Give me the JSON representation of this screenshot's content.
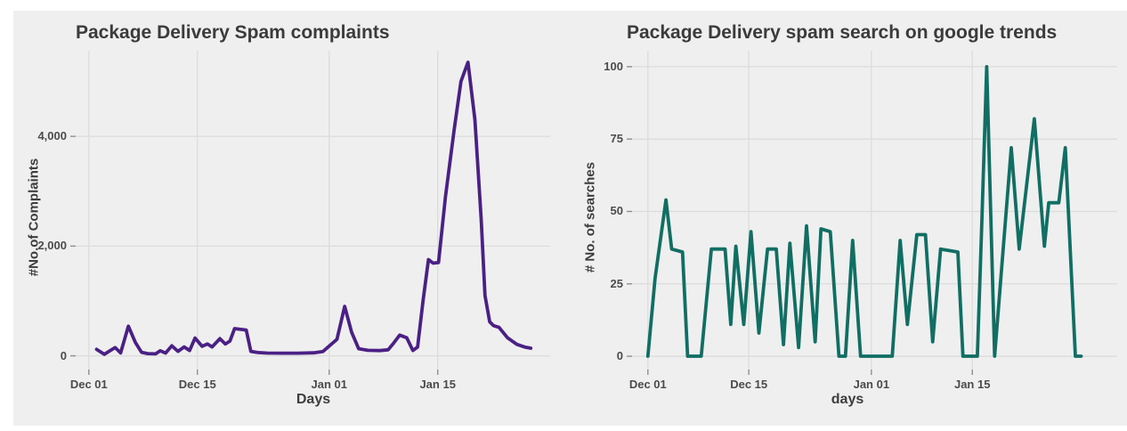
{
  "styles": {
    "figure_background": "#efefef",
    "grid_color": "#dcdcdc",
    "tick_mark_color": "#8f8f8f",
    "title_color": "#3b3b3b",
    "tick_label_color": "#4b4b4b"
  },
  "chart_data": [
    {
      "type": "line",
      "title": "Package Delivery Spam complaints",
      "xlabel": "Days",
      "ylabel": "#No.of Complaints",
      "line_color": "#4b2085",
      "x_unit": "days since Dec 01",
      "xlim": [
        -1.7,
        59.5
      ],
      "ylim": [
        -250,
        5560
      ],
      "grid": true,
      "legend": "none",
      "xticks": [
        {
          "day": 0,
          "label": "Dec 01"
        },
        {
          "day": 14,
          "label": "Dec 15"
        },
        {
          "day": 31,
          "label": "Jan 01"
        },
        {
          "day": 45,
          "label": "Jan 15"
        }
      ],
      "yticks": [
        {
          "value": 0,
          "label": "0"
        },
        {
          "value": 2000,
          "label": "2,000"
        },
        {
          "value": 4000,
          "label": "4,000"
        }
      ],
      "points": [
        [
          1,
          119
        ],
        [
          2,
          27
        ],
        [
          2.9,
          108
        ],
        [
          3.4,
          151
        ],
        [
          4.1,
          54
        ],
        [
          5.1,
          540
        ],
        [
          6,
          243
        ],
        [
          6.8,
          65
        ],
        [
          7.6,
          40
        ],
        [
          8.6,
          35
        ],
        [
          9.2,
          92
        ],
        [
          9.9,
          50
        ],
        [
          10.7,
          184
        ],
        [
          11.5,
          81
        ],
        [
          12.3,
          162
        ],
        [
          13,
          97
        ],
        [
          13.7,
          324
        ],
        [
          14.6,
          173
        ],
        [
          15.3,
          216
        ],
        [
          15.9,
          162
        ],
        [
          16.9,
          313
        ],
        [
          17.6,
          216
        ],
        [
          18.2,
          270
        ],
        [
          18.8,
          497
        ],
        [
          20.3,
          470
        ],
        [
          20.9,
          81
        ],
        [
          21.8,
          60
        ],
        [
          23,
          50
        ],
        [
          25,
          48
        ],
        [
          27,
          48
        ],
        [
          29,
          55
        ],
        [
          30.2,
          80
        ],
        [
          32,
          300
        ],
        [
          33,
          900
        ],
        [
          33.9,
          430
        ],
        [
          34.8,
          130
        ],
        [
          36,
          100
        ],
        [
          37.5,
          95
        ],
        [
          38.6,
          110
        ],
        [
          39.3,
          230
        ],
        [
          40.1,
          378
        ],
        [
          41,
          330
        ],
        [
          41.8,
          97
        ],
        [
          42.4,
          160
        ],
        [
          43.1,
          1000
        ],
        [
          43.8,
          1755
        ],
        [
          44.4,
          1690
        ],
        [
          45.1,
          1700
        ],
        [
          46,
          2900
        ],
        [
          47.1,
          4100
        ],
        [
          48,
          5000
        ],
        [
          48.9,
          5350
        ],
        [
          49.8,
          4300
        ],
        [
          50.6,
          2500
        ],
        [
          51.1,
          1100
        ],
        [
          51.7,
          620
        ],
        [
          52.2,
          550
        ],
        [
          52.9,
          520
        ],
        [
          54,
          330
        ],
        [
          55.2,
          210
        ],
        [
          56.3,
          158
        ],
        [
          57,
          140
        ]
      ]
    },
    {
      "type": "line",
      "title": "Package Delivery spam search on google trends",
      "xlabel": "days",
      "ylabel": "# No. of searches",
      "line_color": "#116e63",
      "x_unit": "days since Dec 01",
      "xlim": [
        -2.2,
        65.1
      ],
      "ylim": [
        -4.6,
        105.5
      ],
      "grid": true,
      "legend": "none",
      "xticks": [
        {
          "day": 0,
          "label": "Dec 01"
        },
        {
          "day": 14,
          "label": "Dec 15"
        },
        {
          "day": 31,
          "label": "Jan 01"
        },
        {
          "day": 45,
          "label": "Jan 15"
        }
      ],
      "yticks": [
        {
          "value": 0,
          "label": "0"
        },
        {
          "value": 25,
          "label": "25"
        },
        {
          "value": 50,
          "label": "50"
        },
        {
          "value": 75,
          "label": "75"
        },
        {
          "value": 100,
          "label": "100"
        }
      ],
      "points": [
        [
          0,
          0
        ],
        [
          1,
          27
        ],
        [
          2.5,
          54
        ],
        [
          3.3,
          37
        ],
        [
          4.8,
          36
        ],
        [
          5.5,
          0
        ],
        [
          7.4,
          0
        ],
        [
          8.8,
          37
        ],
        [
          10.7,
          37
        ],
        [
          11.5,
          11
        ],
        [
          12.2,
          38
        ],
        [
          13.3,
          11
        ],
        [
          14.3,
          43
        ],
        [
          15.4,
          8
        ],
        [
          16.6,
          37
        ],
        [
          17.8,
          37
        ],
        [
          18.8,
          4
        ],
        [
          19.7,
          39
        ],
        [
          20.9,
          3
        ],
        [
          22,
          45
        ],
        [
          23.2,
          5
        ],
        [
          24,
          44
        ],
        [
          25.3,
          43
        ],
        [
          26.5,
          0
        ],
        [
          27.4,
          0
        ],
        [
          28.4,
          40
        ],
        [
          29.5,
          0
        ],
        [
          33.9,
          0
        ],
        [
          35,
          40
        ],
        [
          36,
          11
        ],
        [
          37.3,
          42
        ],
        [
          38.5,
          42
        ],
        [
          39.5,
          5
        ],
        [
          40.6,
          37
        ],
        [
          43,
          36
        ],
        [
          43.7,
          0
        ],
        [
          45.7,
          0
        ],
        [
          46.3,
          45
        ],
        [
          47,
          100
        ],
        [
          48.1,
          0
        ],
        [
          50.4,
          72
        ],
        [
          51.5,
          37
        ],
        [
          53.6,
          82
        ],
        [
          55,
          38
        ],
        [
          55.6,
          53
        ],
        [
          57,
          53
        ],
        [
          57.9,
          72
        ],
        [
          59.3,
          0
        ],
        [
          60.1,
          0
        ]
      ]
    }
  ]
}
